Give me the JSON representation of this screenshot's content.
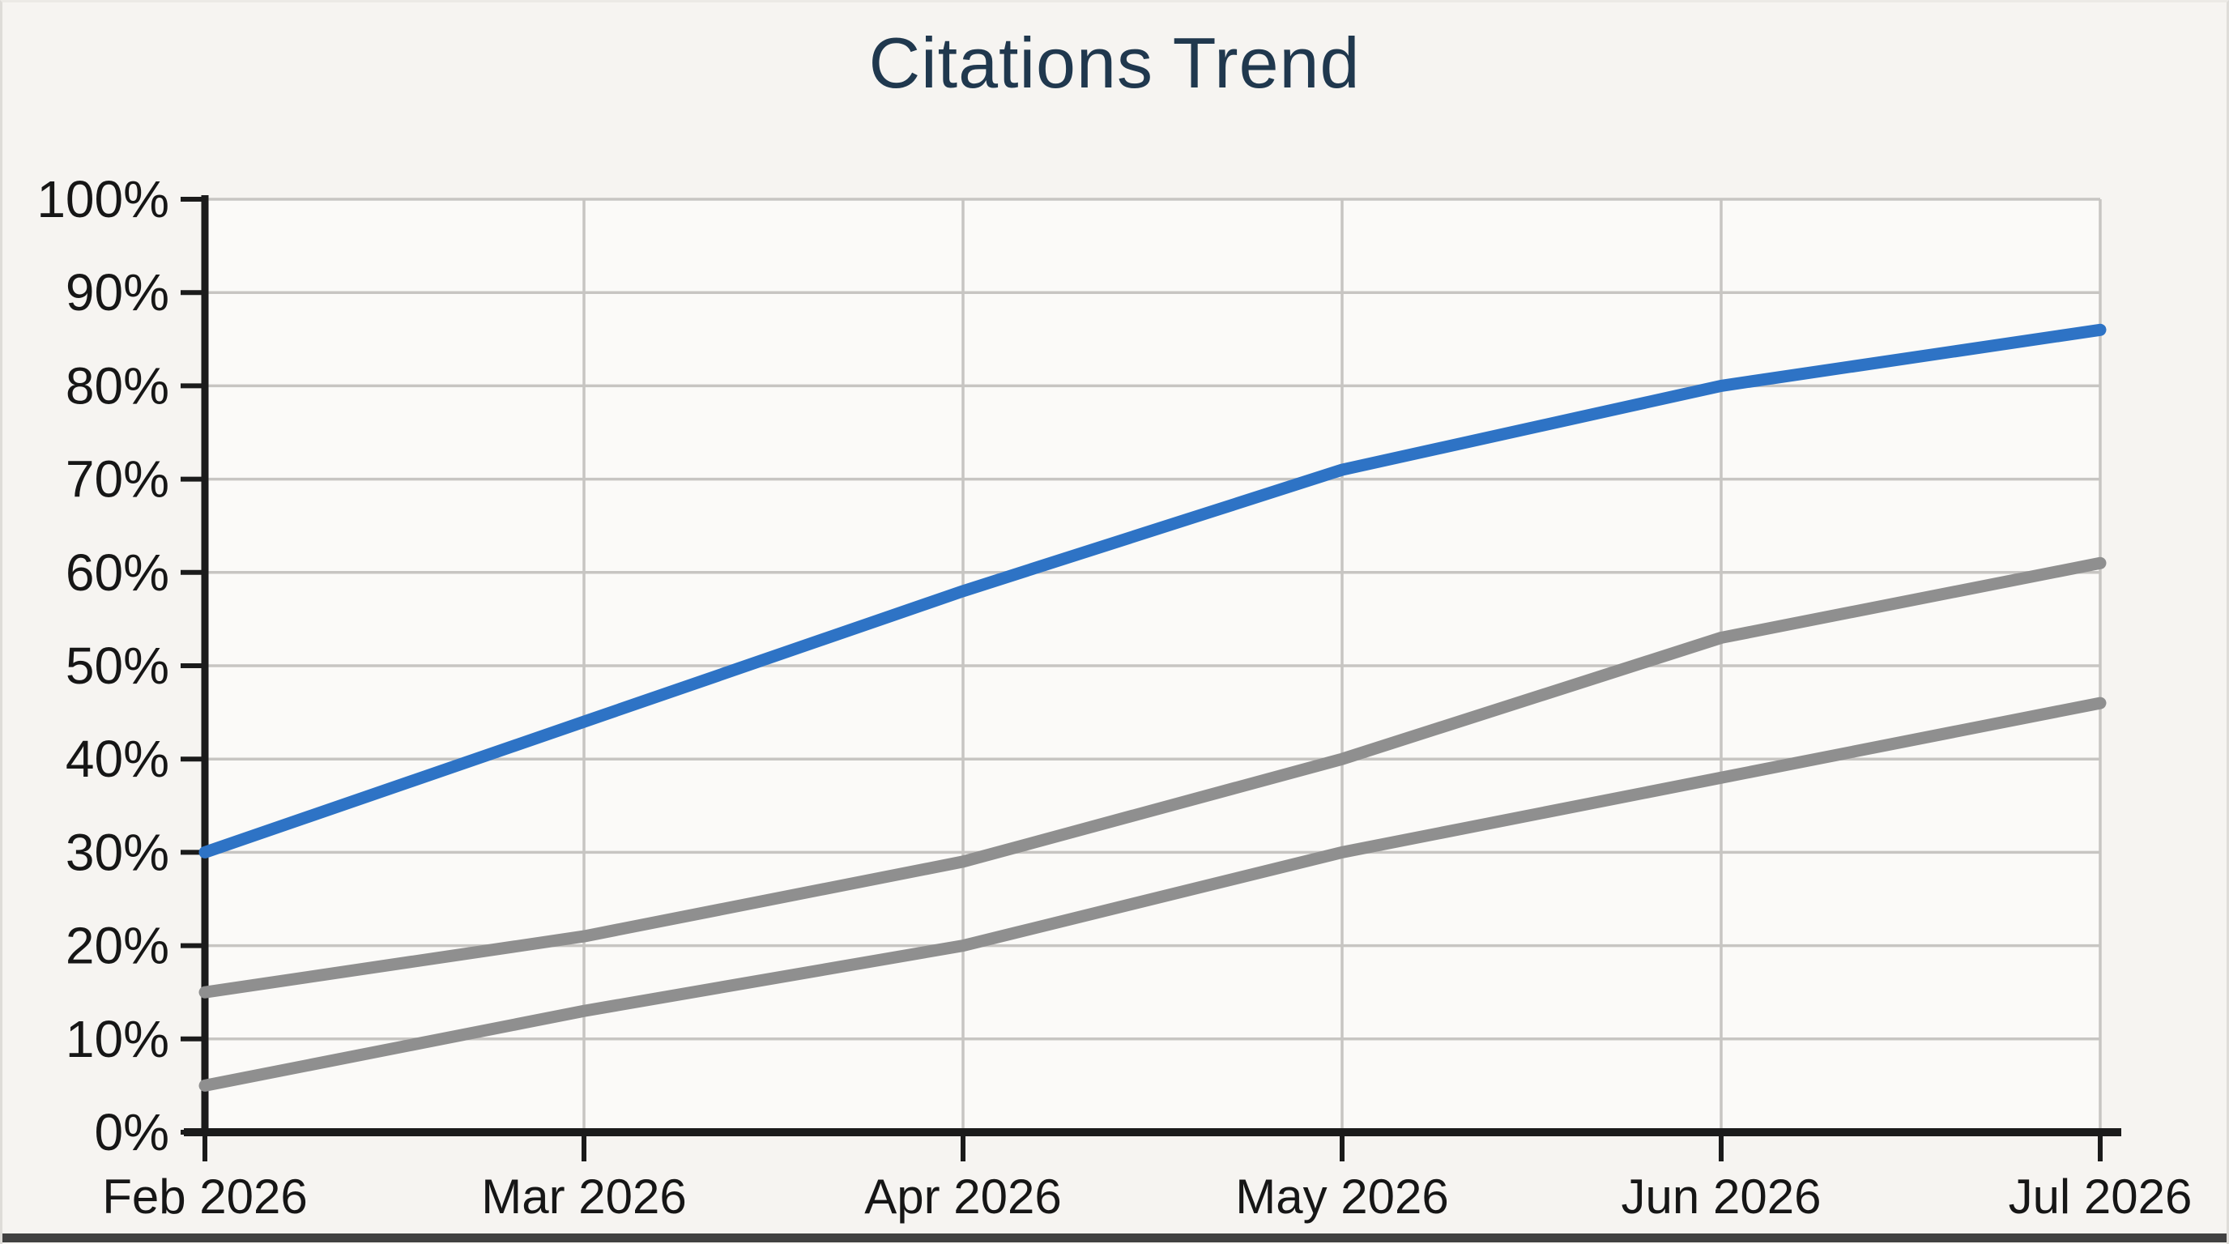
{
  "page": {
    "background": "#f6f4f1",
    "frame_border": "#dedcd8",
    "bottom_edge_color": "#414141"
  },
  "chart_data": {
    "type": "line",
    "title": "Citations Trend",
    "title_color": "#20384e",
    "categories": [
      "Feb 2026",
      "Mar 2026",
      "Apr 2026",
      "May 2026",
      "Jun 2026",
      "Jul 2026"
    ],
    "series": [
      {
        "name": "gray-upper-line",
        "color": "#8f8f8f",
        "values": [
          15,
          21,
          29,
          40,
          53,
          61
        ]
      },
      {
        "name": "gray-lower-line",
        "color": "#8f8f8f",
        "values": [
          5,
          13,
          20,
          30,
          38,
          46
        ]
      },
      {
        "name": "blue-primary-line",
        "color": "#2e73c5",
        "values": [
          30,
          44,
          58,
          71,
          80,
          86
        ]
      }
    ],
    "xlabel": "",
    "ylabel": "",
    "ylim": [
      0,
      100
    ],
    "y_tick_step": 10,
    "y_tick_labels": [
      "0%",
      "10%",
      "20%",
      "30%",
      "40%",
      "50%",
      "60%",
      "70%",
      "80%",
      "90%",
      "100%"
    ],
    "grid": true,
    "legend": "none",
    "axis_color": "#1b1b1b",
    "grid_color": "#c7c5c2",
    "label_color": "#161616",
    "plot_bg": "#fbfaf8"
  }
}
